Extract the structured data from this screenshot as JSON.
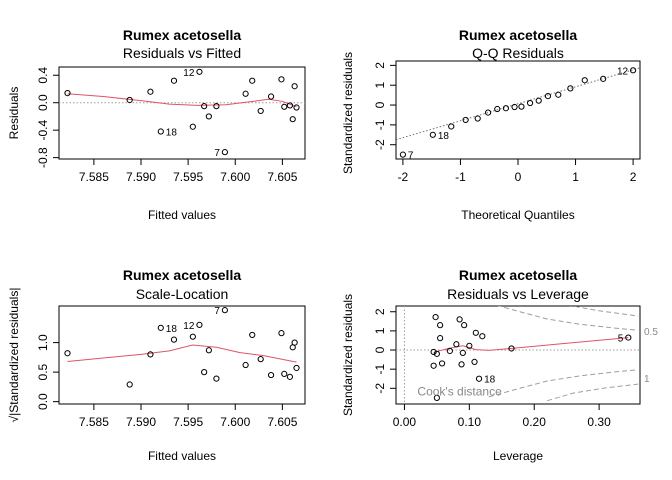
{
  "chart_data": [
    {
      "type": "scatter",
      "title": "Rumex acetosella",
      "subtitle": "Residuals vs Fitted",
      "xlabel": "Fitted values",
      "ylabel": "Residuals",
      "xlim": [
        7.5813,
        7.6074
      ],
      "ylim": [
        -0.82,
        0.52
      ],
      "xticks": [
        7.585,
        7.59,
        7.595,
        7.6,
        7.605
      ],
      "xtick_labels": [
        "7.585",
        "7.590",
        "7.595",
        "7.600",
        "7.605"
      ],
      "yticks": [
        -0.8,
        -0.4,
        0.0,
        0.4
      ],
      "ytick_labels": [
        "-0.8",
        "-0.4",
        "0.0",
        "0.4"
      ],
      "reference_line": {
        "axis": "y",
        "value": 0,
        "style": "dotted"
      },
      "smooth_color": "#DF536B",
      "points": [
        {
          "x": 7.5822,
          "y": 0.14
        },
        {
          "x": 7.5888,
          "y": 0.04
        },
        {
          "x": 7.591,
          "y": 0.16
        },
        {
          "x": 7.5921,
          "y": -0.42
        },
        {
          "x": 7.5935,
          "y": 0.32
        },
        {
          "x": 7.5955,
          "y": -0.35
        },
        {
          "x": 7.5962,
          "y": 0.45
        },
        {
          "x": 7.5967,
          "y": -0.05
        },
        {
          "x": 7.5972,
          "y": -0.2
        },
        {
          "x": 7.598,
          "y": -0.05
        },
        {
          "x": 7.5989,
          "y": -0.72
        },
        {
          "x": 7.6011,
          "y": 0.13
        },
        {
          "x": 7.6018,
          "y": 0.32
        },
        {
          "x": 7.6027,
          "y": -0.12
        },
        {
          "x": 7.6038,
          "y": 0.09
        },
        {
          "x": 7.6049,
          "y": 0.34
        },
        {
          "x": 7.6052,
          "y": -0.06
        },
        {
          "x": 7.6058,
          "y": -0.04
        },
        {
          "x": 7.6061,
          "y": -0.24
        },
        {
          "x": 7.6063,
          "y": 0.24
        },
        {
          "x": 7.6065,
          "y": -0.07
        }
      ],
      "smooth": [
        {
          "x": 7.5822,
          "y": 0.13
        },
        {
          "x": 7.586,
          "y": 0.09
        },
        {
          "x": 7.59,
          "y": 0.03
        },
        {
          "x": 7.593,
          "y": -0.02
        },
        {
          "x": 7.596,
          "y": -0.04
        },
        {
          "x": 7.599,
          "y": -0.03
        },
        {
          "x": 7.602,
          "y": 0.02
        },
        {
          "x": 7.6035,
          "y": 0.05
        },
        {
          "x": 7.605,
          "y": 0.02
        },
        {
          "x": 7.6065,
          "y": -0.06
        }
      ],
      "labels": [
        {
          "text": "12",
          "x": 7.5962,
          "y": 0.45,
          "side": "left"
        },
        {
          "text": "18",
          "x": 7.5921,
          "y": -0.42,
          "side": "right"
        },
        {
          "text": "7",
          "x": 7.5989,
          "y": -0.72,
          "side": "left"
        }
      ]
    },
    {
      "type": "scatter",
      "title": "Rumex acetosella",
      "subtitle": "Q-Q Residuals",
      "xlabel": "Theoretical Quantiles",
      "ylabel": "Standardized residuals",
      "xlim": [
        -2.12,
        2.12
      ],
      "ylim": [
        -2.72,
        2.22
      ],
      "xticks": [
        -2,
        -1,
        0,
        1,
        2
      ],
      "xtick_labels": [
        "-2",
        "-1",
        "0",
        "1",
        "2"
      ],
      "yticks": [
        -2,
        -1,
        0,
        1,
        2
      ],
      "ytick_labels": [
        "-2",
        "-1",
        "0",
        "1",
        "2"
      ],
      "reference_line": {
        "type": "qqline",
        "x1": -2.12,
        "y1": -1.75,
        "x2": 2.12,
        "y2": 1.88,
        "style": "dotted"
      },
      "points": [
        {
          "x": -2.0,
          "y": -2.5
        },
        {
          "x": -1.48,
          "y": -1.5
        },
        {
          "x": -1.16,
          "y": -1.08
        },
        {
          "x": -0.91,
          "y": -0.75
        },
        {
          "x": -0.7,
          "y": -0.68
        },
        {
          "x": -0.52,
          "y": -0.38
        },
        {
          "x": -0.36,
          "y": -0.2
        },
        {
          "x": -0.21,
          "y": -0.16
        },
        {
          "x": -0.06,
          "y": -0.1
        },
        {
          "x": 0.06,
          "y": -0.08
        },
        {
          "x": 0.21,
          "y": 0.1
        },
        {
          "x": 0.36,
          "y": 0.22
        },
        {
          "x": 0.52,
          "y": 0.45
        },
        {
          "x": 0.7,
          "y": 0.52
        },
        {
          "x": 0.91,
          "y": 0.84
        },
        {
          "x": 1.16,
          "y": 1.25
        },
        {
          "x": 1.48,
          "y": 1.32
        },
        {
          "x": 2.0,
          "y": 1.75
        }
      ],
      "labels": [
        {
          "text": "12",
          "x": 2.0,
          "y": 1.75,
          "side": "left"
        },
        {
          "text": "18",
          "x": -1.48,
          "y": -1.5,
          "side": "right"
        },
        {
          "text": "7",
          "x": -2.0,
          "y": -2.5,
          "side": "right"
        }
      ]
    },
    {
      "type": "scatter",
      "title": "Rumex acetosella",
      "subtitle": "Scale-Location",
      "xlabel": "Fitted values",
      "ylabel": "√|Standardized residuals|",
      "xlim": [
        7.5813,
        7.6074
      ],
      "ylim": [
        -0.04,
        1.62
      ],
      "xticks": [
        7.585,
        7.59,
        7.595,
        7.6,
        7.605
      ],
      "xtick_labels": [
        "7.585",
        "7.590",
        "7.595",
        "7.600",
        "7.605"
      ],
      "yticks": [
        0.0,
        0.5,
        1.0
      ],
      "ytick_labels": [
        "0.0",
        "0.5",
        "1.0"
      ],
      "smooth_color": "#DF536B",
      "points": [
        {
          "x": 7.5822,
          "y": 0.82
        },
        {
          "x": 7.5888,
          "y": 0.29
        },
        {
          "x": 7.591,
          "y": 0.8
        },
        {
          "x": 7.5921,
          "y": 1.25
        },
        {
          "x": 7.5935,
          "y": 1.05
        },
        {
          "x": 7.5955,
          "y": 1.1
        },
        {
          "x": 7.5962,
          "y": 1.3
        },
        {
          "x": 7.5967,
          "y": 0.5
        },
        {
          "x": 7.5972,
          "y": 0.87
        },
        {
          "x": 7.598,
          "y": 0.39
        },
        {
          "x": 7.5989,
          "y": 1.55
        },
        {
          "x": 7.6011,
          "y": 0.62
        },
        {
          "x": 7.6018,
          "y": 1.13
        },
        {
          "x": 7.6027,
          "y": 0.72
        },
        {
          "x": 7.6038,
          "y": 0.45
        },
        {
          "x": 7.6049,
          "y": 1.16
        },
        {
          "x": 7.6052,
          "y": 0.47
        },
        {
          "x": 7.6058,
          "y": 0.42
        },
        {
          "x": 7.6061,
          "y": 0.92
        },
        {
          "x": 7.6063,
          "y": 1.0
        },
        {
          "x": 7.6065,
          "y": 0.57
        }
      ],
      "smooth": [
        {
          "x": 7.5822,
          "y": 0.68
        },
        {
          "x": 7.586,
          "y": 0.74
        },
        {
          "x": 7.59,
          "y": 0.8
        },
        {
          "x": 7.593,
          "y": 0.86
        },
        {
          "x": 7.5955,
          "y": 0.96
        },
        {
          "x": 7.598,
          "y": 0.92
        },
        {
          "x": 7.6005,
          "y": 0.83
        },
        {
          "x": 7.603,
          "y": 0.78
        },
        {
          "x": 7.6065,
          "y": 0.67
        }
      ],
      "labels": [
        {
          "text": "18",
          "x": 7.5921,
          "y": 1.25,
          "side": "right"
        },
        {
          "text": "12",
          "x": 7.5962,
          "y": 1.3,
          "side": "left"
        },
        {
          "text": "7",
          "x": 7.5989,
          "y": 1.55,
          "side": "left"
        }
      ]
    },
    {
      "type": "scatter",
      "title": "Rumex acetosella",
      "subtitle": "Residuals vs Leverage",
      "xlabel": "Leverage",
      "ylabel": "Standardized residuals",
      "xlim": [
        -0.013,
        0.363
      ],
      "ylim": [
        -2.82,
        2.3
      ],
      "xticks": [
        0.0,
        0.1,
        0.2,
        0.3
      ],
      "xtick_labels": [
        "0.00",
        "0.10",
        "0.20",
        "0.30"
      ],
      "yticks": [
        -2,
        -1,
        0,
        1,
        2
      ],
      "ytick_labels": [
        "-2",
        "-1",
        "0",
        "1",
        "2"
      ],
      "reference_line": {
        "axis": "y",
        "value": 0,
        "style": "dotted"
      },
      "vertical_reference": {
        "axis": "x",
        "value": 0,
        "style": "dotted"
      },
      "smooth_color": "#DF536B",
      "cooks_text": "Cook's distance",
      "contour_labels": [
        "0.5",
        "1"
      ],
      "contours": [
        {
          "level": "0.5",
          "sign": 1,
          "points": [
            {
              "x": 0.13,
              "y": 2.45
            },
            {
              "x": 0.18,
              "y": 1.98
            },
            {
              "x": 0.22,
              "y": 1.62
            },
            {
              "x": 0.27,
              "y": 1.35
            },
            {
              "x": 0.32,
              "y": 1.16
            },
            {
              "x": 0.36,
              "y": 1.03
            }
          ]
        },
        {
          "level": "0.5",
          "sign": -1,
          "points": [
            {
              "x": 0.13,
              "y": -2.45
            },
            {
              "x": 0.18,
              "y": -1.98
            },
            {
              "x": 0.22,
              "y": -1.62
            },
            {
              "x": 0.27,
              "y": -1.35
            },
            {
              "x": 0.32,
              "y": -1.16
            },
            {
              "x": 0.36,
              "y": -1.03
            }
          ]
        },
        {
          "level": "1",
          "sign": 1,
          "points": [
            {
              "x": 0.25,
              "y": 2.35
            },
            {
              "x": 0.3,
              "y": 2.05
            },
            {
              "x": 0.36,
              "y": 1.78
            }
          ]
        },
        {
          "level": "1",
          "sign": -1,
          "points": [
            {
              "x": 0.22,
              "y": -2.65
            },
            {
              "x": 0.26,
              "y": -2.25
            },
            {
              "x": 0.31,
              "y": -1.98
            },
            {
              "x": 0.36,
              "y": -1.78
            }
          ]
        }
      ],
      "points": [
        {
          "x": 0.048,
          "y": 1.72
        },
        {
          "x": 0.055,
          "y": 1.3
        },
        {
          "x": 0.085,
          "y": 1.6
        },
        {
          "x": 0.092,
          "y": 1.3
        },
        {
          "x": 0.11,
          "y": 0.9
        },
        {
          "x": 0.12,
          "y": 0.72
        },
        {
          "x": 0.055,
          "y": 0.62
        },
        {
          "x": 0.08,
          "y": 0.3
        },
        {
          "x": 0.1,
          "y": 0.22
        },
        {
          "x": 0.165,
          "y": 0.08
        },
        {
          "x": 0.045,
          "y": -0.1
        },
        {
          "x": 0.05,
          "y": -0.2
        },
        {
          "x": 0.07,
          "y": -0.05
        },
        {
          "x": 0.09,
          "y": -0.15
        },
        {
          "x": 0.058,
          "y": -0.7
        },
        {
          "x": 0.045,
          "y": -0.82
        },
        {
          "x": 0.088,
          "y": -0.75
        },
        {
          "x": 0.108,
          "y": -0.62
        },
        {
          "x": 0.115,
          "y": -1.5
        },
        {
          "x": 0.05,
          "y": -2.5
        },
        {
          "x": 0.345,
          "y": 0.65
        }
      ],
      "smooth": [
        {
          "x": 0.045,
          "y": -0.12
        },
        {
          "x": 0.07,
          "y": 0.1
        },
        {
          "x": 0.09,
          "y": 0.22
        },
        {
          "x": 0.11,
          "y": 0.02
        },
        {
          "x": 0.13,
          "y": -0.02
        },
        {
          "x": 0.17,
          "y": 0.1
        },
        {
          "x": 0.25,
          "y": 0.35
        },
        {
          "x": 0.345,
          "y": 0.65
        }
      ],
      "labels": [
        {
          "text": "18",
          "x": 0.115,
          "y": -1.5,
          "side": "right"
        },
        {
          "text": "5",
          "x": 0.345,
          "y": 0.65,
          "side": "left"
        }
      ]
    }
  ]
}
